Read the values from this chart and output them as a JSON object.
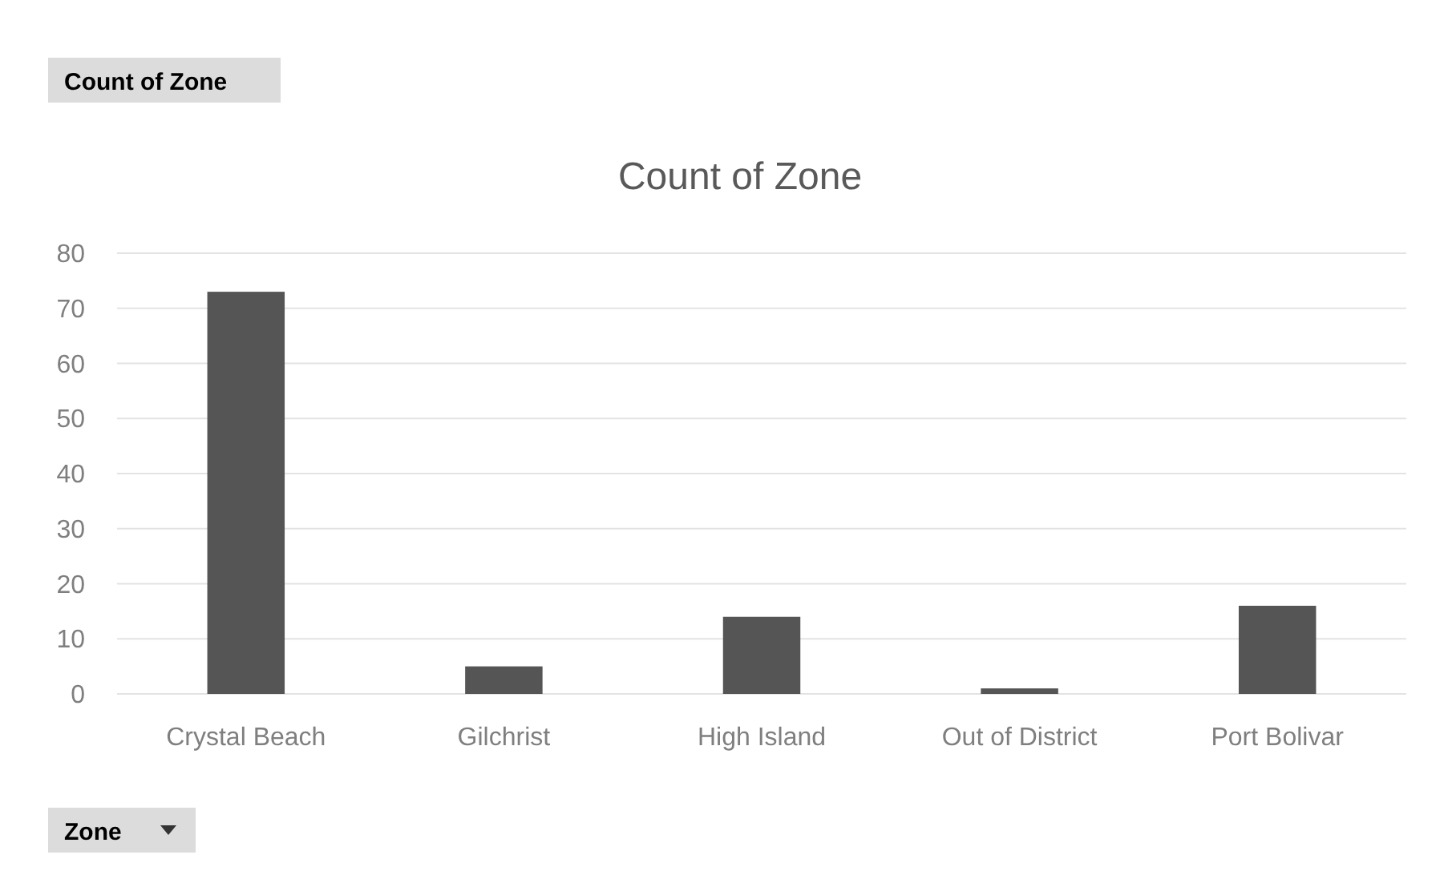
{
  "chart_data": {
    "type": "bar",
    "title": "Count of Zone",
    "categories": [
      "Crystal Beach",
      "Gilchrist",
      "High Island",
      "Out of District",
      "Port Bolivar"
    ],
    "values": [
      73,
      5,
      14,
      1,
      16
    ],
    "color": "#555555",
    "ylim": [
      0,
      80
    ],
    "yticks": [
      0,
      10,
      20,
      30,
      40,
      50,
      60,
      70,
      80
    ],
    "grid": "y",
    "annotations": [
      "Count of Zone",
      "Zone"
    ]
  }
}
